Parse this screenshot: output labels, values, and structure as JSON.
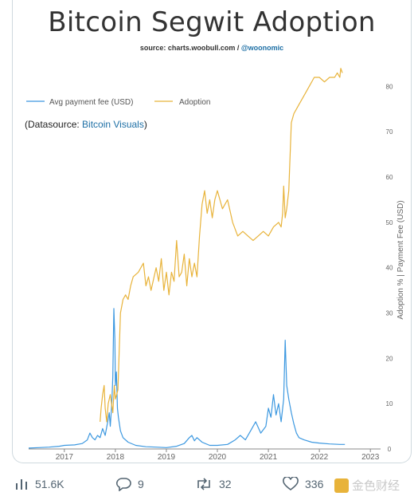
{
  "card": {
    "title": "Bitcoin Segwit Adoption",
    "source_prefix": "source: charts.woobull.com / ",
    "source_handle": "@woonomic",
    "datasource_prefix": "(Datasource: ",
    "datasource_link": "Bitcoin Visuals",
    "datasource_suffix": ")"
  },
  "chart_data": {
    "type": "line",
    "title": "Bitcoin Segwit Adoption",
    "ylabel": "Adoption % | Payment Fee (USD)",
    "xlabel": "",
    "x_ticks": [
      "2017",
      "2018",
      "2019",
      "2020",
      "2021",
      "2022",
      "2023"
    ],
    "y_ticks": [
      0,
      10,
      20,
      30,
      40,
      50,
      60,
      70,
      80
    ],
    "xlim": [
      2016.3,
      2023.2
    ],
    "ylim": [
      0,
      85
    ],
    "legend": "top-left",
    "grid": false,
    "series": [
      {
        "name": "Avg payment fee (USD)",
        "color": "#3c98e0",
        "x": [
          2016.3,
          2016.5,
          2016.7,
          2016.9,
          2017.0,
          2017.2,
          2017.35,
          2017.45,
          2017.5,
          2017.55,
          2017.6,
          2017.65,
          2017.7,
          2017.75,
          2017.8,
          2017.85,
          2017.88,
          2017.9,
          2017.93,
          2017.95,
          2017.97,
          2017.99,
          2018.0,
          2018.02,
          2018.04,
          2018.06,
          2018.1,
          2018.15,
          2018.25,
          2018.4,
          2018.6,
          2018.8,
          2019.0,
          2019.2,
          2019.35,
          2019.45,
          2019.5,
          2019.55,
          2019.6,
          2019.7,
          2019.85,
          2020.0,
          2020.2,
          2020.35,
          2020.45,
          2020.55,
          2020.65,
          2020.75,
          2020.85,
          2020.95,
          2021.0,
          2021.05,
          2021.1,
          2021.15,
          2021.2,
          2021.25,
          2021.3,
          2021.33,
          2021.36,
          2021.4,
          2021.45,
          2021.5,
          2021.55,
          2021.6,
          2021.7,
          2021.85,
          2022.0,
          2022.2,
          2022.4,
          2022.5
        ],
        "y": [
          0.2,
          0.3,
          0.4,
          0.6,
          0.8,
          0.9,
          1.2,
          2.0,
          3.5,
          2.5,
          2.0,
          3.0,
          2.5,
          4.5,
          3.0,
          6.0,
          8.0,
          5.0,
          10.0,
          16.0,
          31.0,
          24.0,
          14.0,
          17.0,
          9.0,
          7.0,
          4.0,
          2.5,
          1.5,
          0.8,
          0.5,
          0.4,
          0.3,
          0.6,
          1.2,
          2.5,
          3.0,
          1.8,
          2.5,
          1.5,
          0.8,
          0.8,
          1.0,
          2.0,
          3.0,
          2.0,
          4.0,
          6.0,
          3.5,
          5.0,
          9.0,
          7.0,
          12.0,
          7.5,
          10.0,
          6.0,
          11.0,
          24.0,
          14.0,
          11.0,
          8.0,
          5.5,
          3.5,
          2.5,
          2.0,
          1.5,
          1.3,
          1.1,
          1.0,
          1.0
        ]
      },
      {
        "name": "Adoption",
        "color": "#e8b33a",
        "x": [
          2017.7,
          2017.72,
          2017.75,
          2017.78,
          2017.8,
          2017.83,
          2017.86,
          2017.9,
          2017.95,
          2017.98,
          2018.0,
          2018.05,
          2018.1,
          2018.15,
          2018.2,
          2018.25,
          2018.3,
          2018.35,
          2018.45,
          2018.55,
          2018.6,
          2018.65,
          2018.7,
          2018.8,
          2018.85,
          2018.9,
          2018.95,
          2019.0,
          2019.05,
          2019.1,
          2019.15,
          2019.2,
          2019.25,
          2019.3,
          2019.35,
          2019.4,
          2019.45,
          2019.5,
          2019.55,
          2019.6,
          2019.65,
          2019.7,
          2019.75,
          2019.8,
          2019.85,
          2019.9,
          2019.95,
          2020.0,
          2020.1,
          2020.2,
          2020.3,
          2020.4,
          2020.5,
          2020.6,
          2020.7,
          2020.8,
          2020.9,
          2021.0,
          2021.1,
          2021.2,
          2021.25,
          2021.28,
          2021.3,
          2021.33,
          2021.36,
          2021.4,
          2021.45,
          2021.5,
          2021.55,
          2021.6,
          2021.7,
          2021.8,
          2021.9,
          2022.0,
          2022.1,
          2022.2,
          2022.3,
          2022.35,
          2022.4,
          2022.42,
          2022.45
        ],
        "y": [
          6,
          9,
          12,
          14,
          9,
          6,
          10,
          12,
          8,
          14,
          11,
          13,
          30,
          33,
          34,
          33,
          36,
          38,
          39,
          41,
          36,
          38,
          35,
          40,
          37,
          42,
          35,
          39,
          34,
          39,
          37,
          46,
          38,
          39,
          43,
          36,
          42,
          38,
          41,
          38,
          47,
          54,
          57,
          52,
          55,
          51,
          55,
          57,
          53,
          55,
          50,
          47,
          48,
          47,
          46,
          47,
          48,
          47,
          49,
          50,
          49,
          52,
          58,
          51,
          53,
          57,
          72,
          74,
          75,
          76,
          78,
          80,
          82,
          82,
          81,
          82,
          82,
          83,
          82,
          84,
          83
        ]
      }
    ]
  },
  "actions": {
    "views": "51.6K",
    "replies": "9",
    "retweets": "32",
    "likes": "336"
  },
  "watermark": "金色财经"
}
